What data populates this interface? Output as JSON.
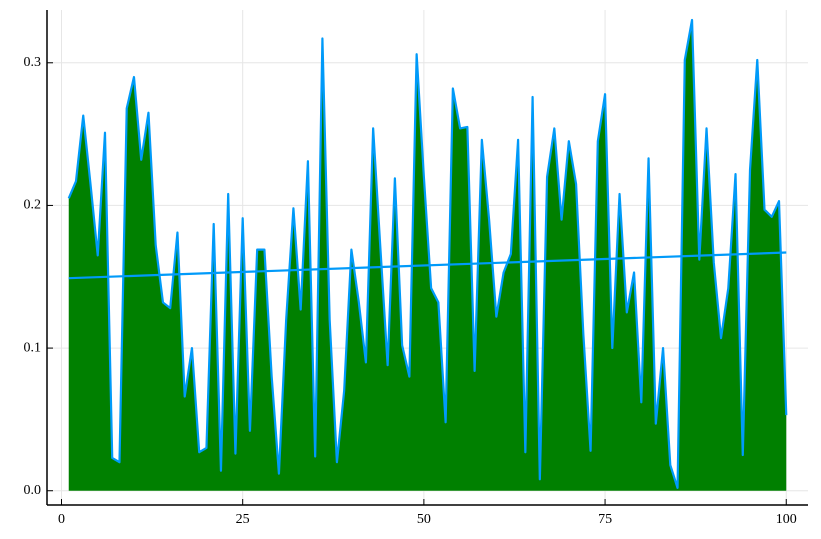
{
  "chart_data": {
    "type": "area",
    "x": [
      1,
      2,
      3,
      4,
      5,
      6,
      7,
      8,
      9,
      10,
      11,
      12,
      13,
      14,
      15,
      16,
      17,
      18,
      19,
      20,
      21,
      22,
      23,
      24,
      25,
      26,
      27,
      28,
      29,
      30,
      31,
      32,
      33,
      34,
      35,
      36,
      37,
      38,
      39,
      40,
      41,
      42,
      43,
      44,
      45,
      46,
      47,
      48,
      49,
      50,
      51,
      52,
      53,
      54,
      55,
      56,
      57,
      58,
      59,
      60,
      61,
      62,
      63,
      64,
      65,
      66,
      67,
      68,
      69,
      70,
      71,
      72,
      73,
      74,
      75,
      76,
      77,
      78,
      79,
      80,
      81,
      82,
      83,
      84,
      85,
      86,
      87,
      88,
      89,
      90,
      91,
      92,
      93,
      94,
      95,
      96,
      97,
      98,
      99,
      100
    ],
    "series": [
      {
        "color": "#009af9",
        "fill_color": "#008000",
        "values": [
          0.205,
          0.217,
          0.263,
          0.215,
          0.165,
          0.251,
          0.023,
          0.02,
          0.268,
          0.29,
          0.232,
          0.265,
          0.172,
          0.132,
          0.128,
          0.181,
          0.066,
          0.1,
          0.027,
          0.03,
          0.187,
          0.014,
          0.208,
          0.026,
          0.191,
          0.042,
          0.169,
          0.169,
          0.08,
          0.012,
          0.12,
          0.198,
          0.127,
          0.231,
          0.024,
          0.317,
          0.12,
          0.02,
          0.07,
          0.169,
          0.133,
          0.09,
          0.254,
          0.17,
          0.088,
          0.219,
          0.102,
          0.08,
          0.306,
          0.22,
          0.142,
          0.132,
          0.048,
          0.282,
          0.254,
          0.255,
          0.084,
          0.246,
          0.19,
          0.122,
          0.153,
          0.166,
          0.246,
          0.027,
          0.276,
          0.008,
          0.22,
          0.254,
          0.19,
          0.245,
          0.215,
          0.11,
          0.028,
          0.245,
          0.278,
          0.1,
          0.208,
          0.125,
          0.153,
          0.062,
          0.233,
          0.047,
          0.1,
          0.018,
          0.002,
          0.302,
          0.33,
          0.162,
          0.254,
          0.16,
          0.107,
          0.142,
          0.222,
          0.025,
          0.225,
          0.302,
          0.197,
          0.192,
          0.203,
          0.053
        ]
      },
      {
        "type": "line",
        "color": "#009af9",
        "x": [
          1,
          100
        ],
        "values": [
          0.149,
          0.167
        ]
      }
    ],
    "xlim": [
      -2,
      103
    ],
    "ylim": [
      -0.01,
      0.337
    ],
    "xticks": [
      0,
      25,
      50,
      75,
      100
    ],
    "yticks": [
      {
        "value": 0,
        "label": "0.0"
      },
      0.1,
      0.2,
      0.3
    ],
    "grid": true
  }
}
